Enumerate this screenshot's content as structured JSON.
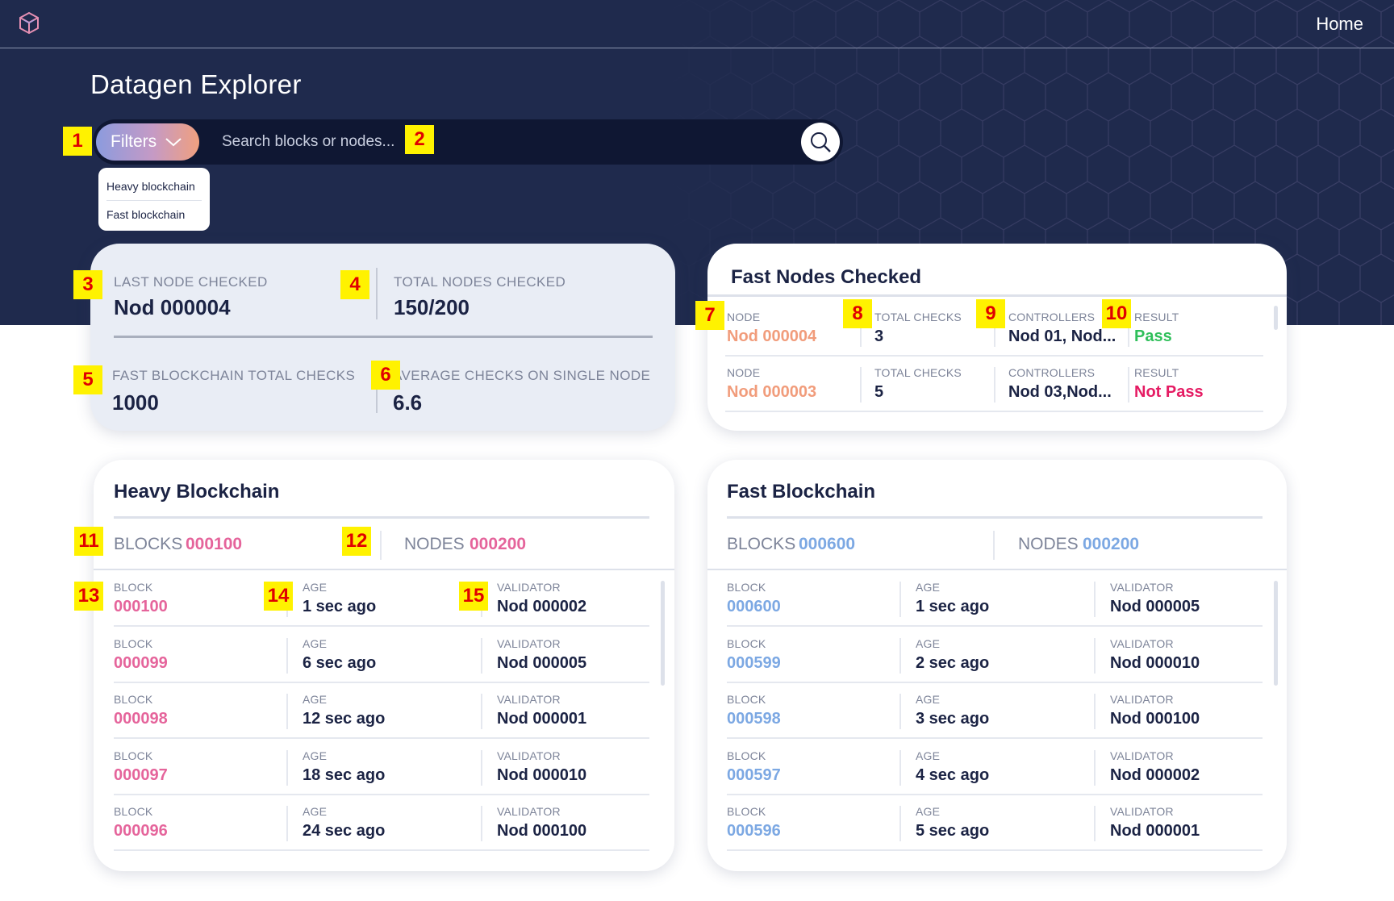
{
  "header": {
    "home_label": "Home",
    "page_title": "Datagen Explorer"
  },
  "search": {
    "filters_label": "Filters",
    "placeholder": "Search blocks or nodes...",
    "filter_options": [
      "Heavy blockchain",
      "Fast blockchain"
    ]
  },
  "stats": {
    "last_node_label": "LAST NODE CHECKED",
    "last_node_value": "Nod 000004",
    "total_nodes_label": "TOTAL NODES CHECKED",
    "total_nodes_value": "150/200",
    "fast_total_label": "FAST BLOCKCHAIN TOTAL CHECKS",
    "fast_total_value": "1000",
    "avg_label": "AVERAGE CHECKS ON SINGLE NODE",
    "avg_value": "6.6"
  },
  "fast_nodes": {
    "title": "Fast Nodes Checked",
    "rows": [
      {
        "node_label": "NODE",
        "node": "Nod 000004",
        "checks_label": "TOTAL CHECKS",
        "checks": "3",
        "controllers_label": "CONTROLLERS",
        "controllers": "Nod 01, Nod...",
        "result_label": "RESULT",
        "result": "Pass"
      },
      {
        "node_label": "NODE",
        "node": "Nod 000003",
        "checks_label": "TOTAL CHECKS",
        "checks": "5",
        "controllers_label": "CONTROLLERS",
        "controllers": "Nod 03,Nod...",
        "result_label": "RESULT",
        "result": "Not Pass"
      }
    ]
  },
  "heavy": {
    "title": "Heavy Blockchain",
    "blocks_label": "BLOCKS",
    "blocks_value": "000100",
    "nodes_label": "NODES",
    "nodes_value": "000200",
    "rows": [
      {
        "block_label": "BLOCK",
        "block": "000100",
        "age_label": "AGE",
        "age": "1 sec ago",
        "validator_label": "VALIDATOR",
        "validator": "Nod 000002"
      },
      {
        "block_label": "BLOCK",
        "block": "000099",
        "age_label": "AGE",
        "age": "6 sec ago",
        "validator_label": "VALIDATOR",
        "validator": "Nod 000005"
      },
      {
        "block_label": "BLOCK",
        "block": "000098",
        "age_label": "AGE",
        "age": "12 sec ago",
        "validator_label": "VALIDATOR",
        "validator": "Nod 000001"
      },
      {
        "block_label": "BLOCK",
        "block": "000097",
        "age_label": "AGE",
        "age": "18 sec ago",
        "validator_label": "VALIDATOR",
        "validator": "Nod 000010"
      },
      {
        "block_label": "BLOCK",
        "block": "000096",
        "age_label": "AGE",
        "age": "24 sec ago",
        "validator_label": "VALIDATOR",
        "validator": "Nod 000100"
      }
    ]
  },
  "fast": {
    "title": "Fast Blockchain",
    "blocks_label": "BLOCKS",
    "blocks_value": "000600",
    "nodes_label": "NODES",
    "nodes_value": "000200",
    "rows": [
      {
        "block_label": "BLOCK",
        "block": "000600",
        "age_label": "AGE",
        "age": "1 sec ago",
        "validator_label": "VALIDATOR",
        "validator": "Nod 000005"
      },
      {
        "block_label": "BLOCK",
        "block": "000599",
        "age_label": "AGE",
        "age": "2 sec ago",
        "validator_label": "VALIDATOR",
        "validator": "Nod 000010"
      },
      {
        "block_label": "BLOCK",
        "block": "000598",
        "age_label": "AGE",
        "age": "3 sec ago",
        "validator_label": "VALIDATOR",
        "validator": "Nod 000100"
      },
      {
        "block_label": "BLOCK",
        "block": "000597",
        "age_label": "AGE",
        "age": "4 sec ago",
        "validator_label": "VALIDATOR",
        "validator": "Nod 000002"
      },
      {
        "block_label": "BLOCK",
        "block": "000596",
        "age_label": "AGE",
        "age": "5 sec ago",
        "validator_label": "VALIDATOR",
        "validator": "Nod 000001"
      }
    ]
  },
  "markers": [
    "1",
    "2",
    "3",
    "4",
    "5",
    "6",
    "7",
    "8",
    "9",
    "10",
    "11",
    "12",
    "13",
    "14",
    "15"
  ],
  "colors": {
    "header_bg": "#1f2a4d",
    "heavy_accent": "#e5649b",
    "fast_accent": "#7ca8e3",
    "node_accent": "#f19c7b",
    "pass": "#2fbf5a",
    "not_pass": "#e51b63"
  }
}
